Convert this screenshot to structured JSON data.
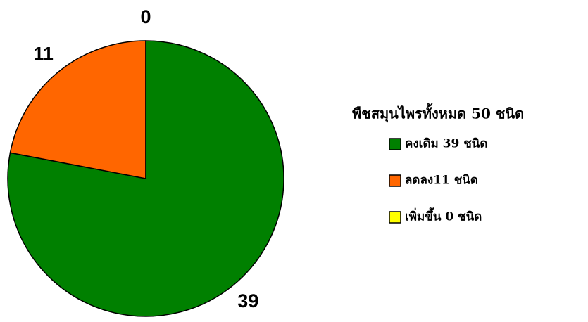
{
  "chart_data": {
    "type": "pie",
    "legend_title": "พืชสมุนไพรทั้งหมด 50 ชนิด",
    "categories": [
      "คงเดิม 39 ชนิด",
      "ลดลง11 ชนิด",
      "เพิ่มขึ้น 0 ชนิด"
    ],
    "values": [
      39,
      11,
      0
    ],
    "colors": [
      "#008000",
      "#ff6600",
      "#ffff00"
    ],
    "legend": "right"
  }
}
